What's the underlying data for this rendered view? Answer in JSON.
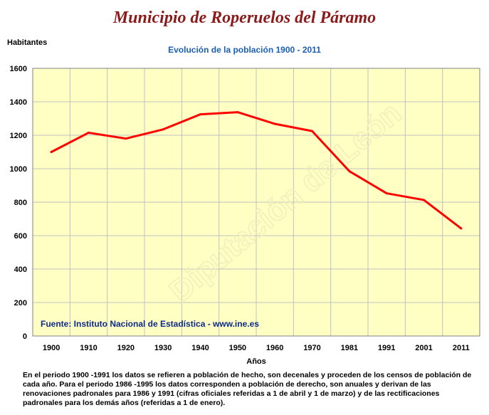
{
  "header": {
    "title": "Municipio de Roperuelos del Páramo",
    "y_unit": "Habitantes",
    "subtitle": "Evolución de la población 1900 - 2011"
  },
  "chart_data": {
    "type": "line",
    "title": "Evolución de la población 1900 - 2011",
    "xlabel": "Años",
    "ylabel": "Habitantes",
    "ylim": [
      0,
      1600
    ],
    "yticks": [
      0,
      200,
      400,
      600,
      800,
      1000,
      1200,
      1400,
      1600
    ],
    "categories": [
      "1900",
      "1910",
      "1920",
      "1930",
      "1940",
      "1950",
      "1960",
      "1970",
      "1981",
      "1991",
      "2001",
      "2011"
    ],
    "series": [
      {
        "values": [
          1100,
          1215,
          1180,
          1235,
          1325,
          1338,
          1268,
          1225,
          985,
          853,
          813,
          643
        ]
      }
    ],
    "grid": true,
    "colors": {
      "line": "#ff0000",
      "plot_bg": "#ffffc4",
      "grid": "#c0c0c0",
      "frame": "#808080"
    }
  },
  "source": "Fuente: Instituto Nacional de Estadística - www.ine.es",
  "watermark": "Diputación de León",
  "footnote": "En el periodo 1900 -1991 los datos se refieren a población de hecho, son decenales y proceden de los censos de población de cada año. Para el periodo 1986 -1995 los datos corresponden a población de derecho, son anuales y derivan de las renovaciones padronales para 1986 y 1991 (cifras oficiales referidas a 1 de abril y 1 de marzo) y de las rectificaciones padronales para los demás años (referidas a 1 de enero)."
}
